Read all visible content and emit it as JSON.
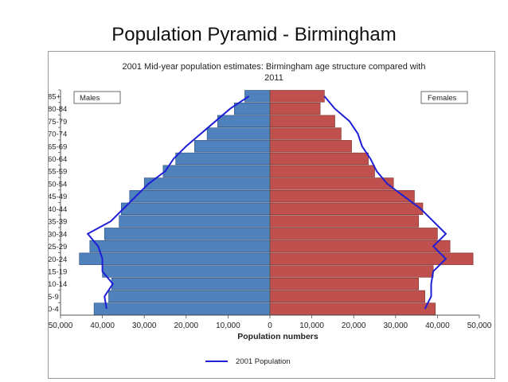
{
  "slide": {
    "title": "Population Pyramid - Birmingham"
  },
  "chart_data": {
    "type": "bar",
    "orientation": "horizontal-pyramid",
    "title": "2001 Mid-year population estimates: Birmingham age structure compared with 2011",
    "xlabel": "Population numbers",
    "ylabel": "",
    "xlim": [
      -50000,
      50000
    ],
    "x_ticks": [
      "50,000",
      "40,000",
      "30,000",
      "20,000",
      "10,000",
      "0",
      "10,000",
      "20,000",
      "30,000",
      "40,000",
      "50,000"
    ],
    "categories": [
      "0-4",
      "5-9",
      "10-14",
      "15-19",
      "20-24",
      "25-29",
      "30-34",
      "35-39",
      "40-44",
      "45-49",
      "50-54",
      "55-59",
      "60-64",
      "65-69",
      "70-74",
      "75-79",
      "80-84",
      "85+"
    ],
    "series": [
      {
        "name": "Males",
        "color": "#4f81bd",
        "values": [
          42000,
          38500,
          37800,
          40000,
          45500,
          43000,
          39500,
          36000,
          35500,
          33500,
          30000,
          25500,
          22500,
          18000,
          15000,
          12500,
          8500,
          6000
        ]
      },
      {
        "name": "Females",
        "color": "#c0504d",
        "values": [
          39500,
          37000,
          35500,
          39000,
          48500,
          43000,
          40000,
          35500,
          36500,
          34500,
          29500,
          25000,
          23500,
          19500,
          17000,
          15500,
          12000,
          13000
        ]
      }
    ],
    "overlay_line": {
      "name": "2001 Population",
      "color": "#1f1fd6",
      "male": [
        39000,
        39500,
        37500,
        40000,
        40000,
        41000,
        43500,
        38000,
        35000,
        32000,
        29000,
        25000,
        23000,
        20000,
        16500,
        13000,
        9500,
        5000
      ],
      "female": [
        37000,
        38500,
        38500,
        39000,
        42000,
        39000,
        42000,
        39000,
        36000,
        32000,
        28000,
        25500,
        24000,
        22000,
        21000,
        19000,
        15500,
        13000
      ]
    },
    "legend": {
      "position": "bottom",
      "male_label": "Males",
      "female_label": "Females",
      "line_label": "2001 Population"
    },
    "grid": false
  }
}
